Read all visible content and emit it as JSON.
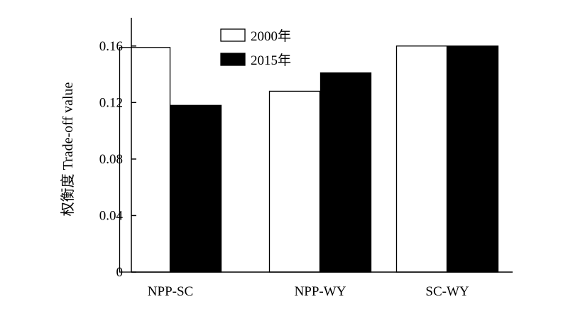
{
  "chart_data": {
    "type": "bar",
    "title": "",
    "xlabel": "",
    "ylabel": "权衡度 Trade-off value",
    "categories": [
      "NPP-SC",
      "NPP-WY",
      "SC-WY"
    ],
    "series": [
      {
        "name": "2000年",
        "values": [
          0.159,
          0.128,
          0.16
        ],
        "color": "#ffffff"
      },
      {
        "name": "2015年",
        "values": [
          0.118,
          0.141,
          0.16
        ],
        "color": "#000000"
      }
    ],
    "ylim": [
      0,
      0.18
    ],
    "yticks": [
      0,
      0.04,
      0.08,
      0.12,
      0.16
    ],
    "ytick_labels": [
      "0",
      "0.04",
      "0.08",
      "0.12",
      "0.16"
    ],
    "grid": false,
    "legend_position": "top-center"
  }
}
